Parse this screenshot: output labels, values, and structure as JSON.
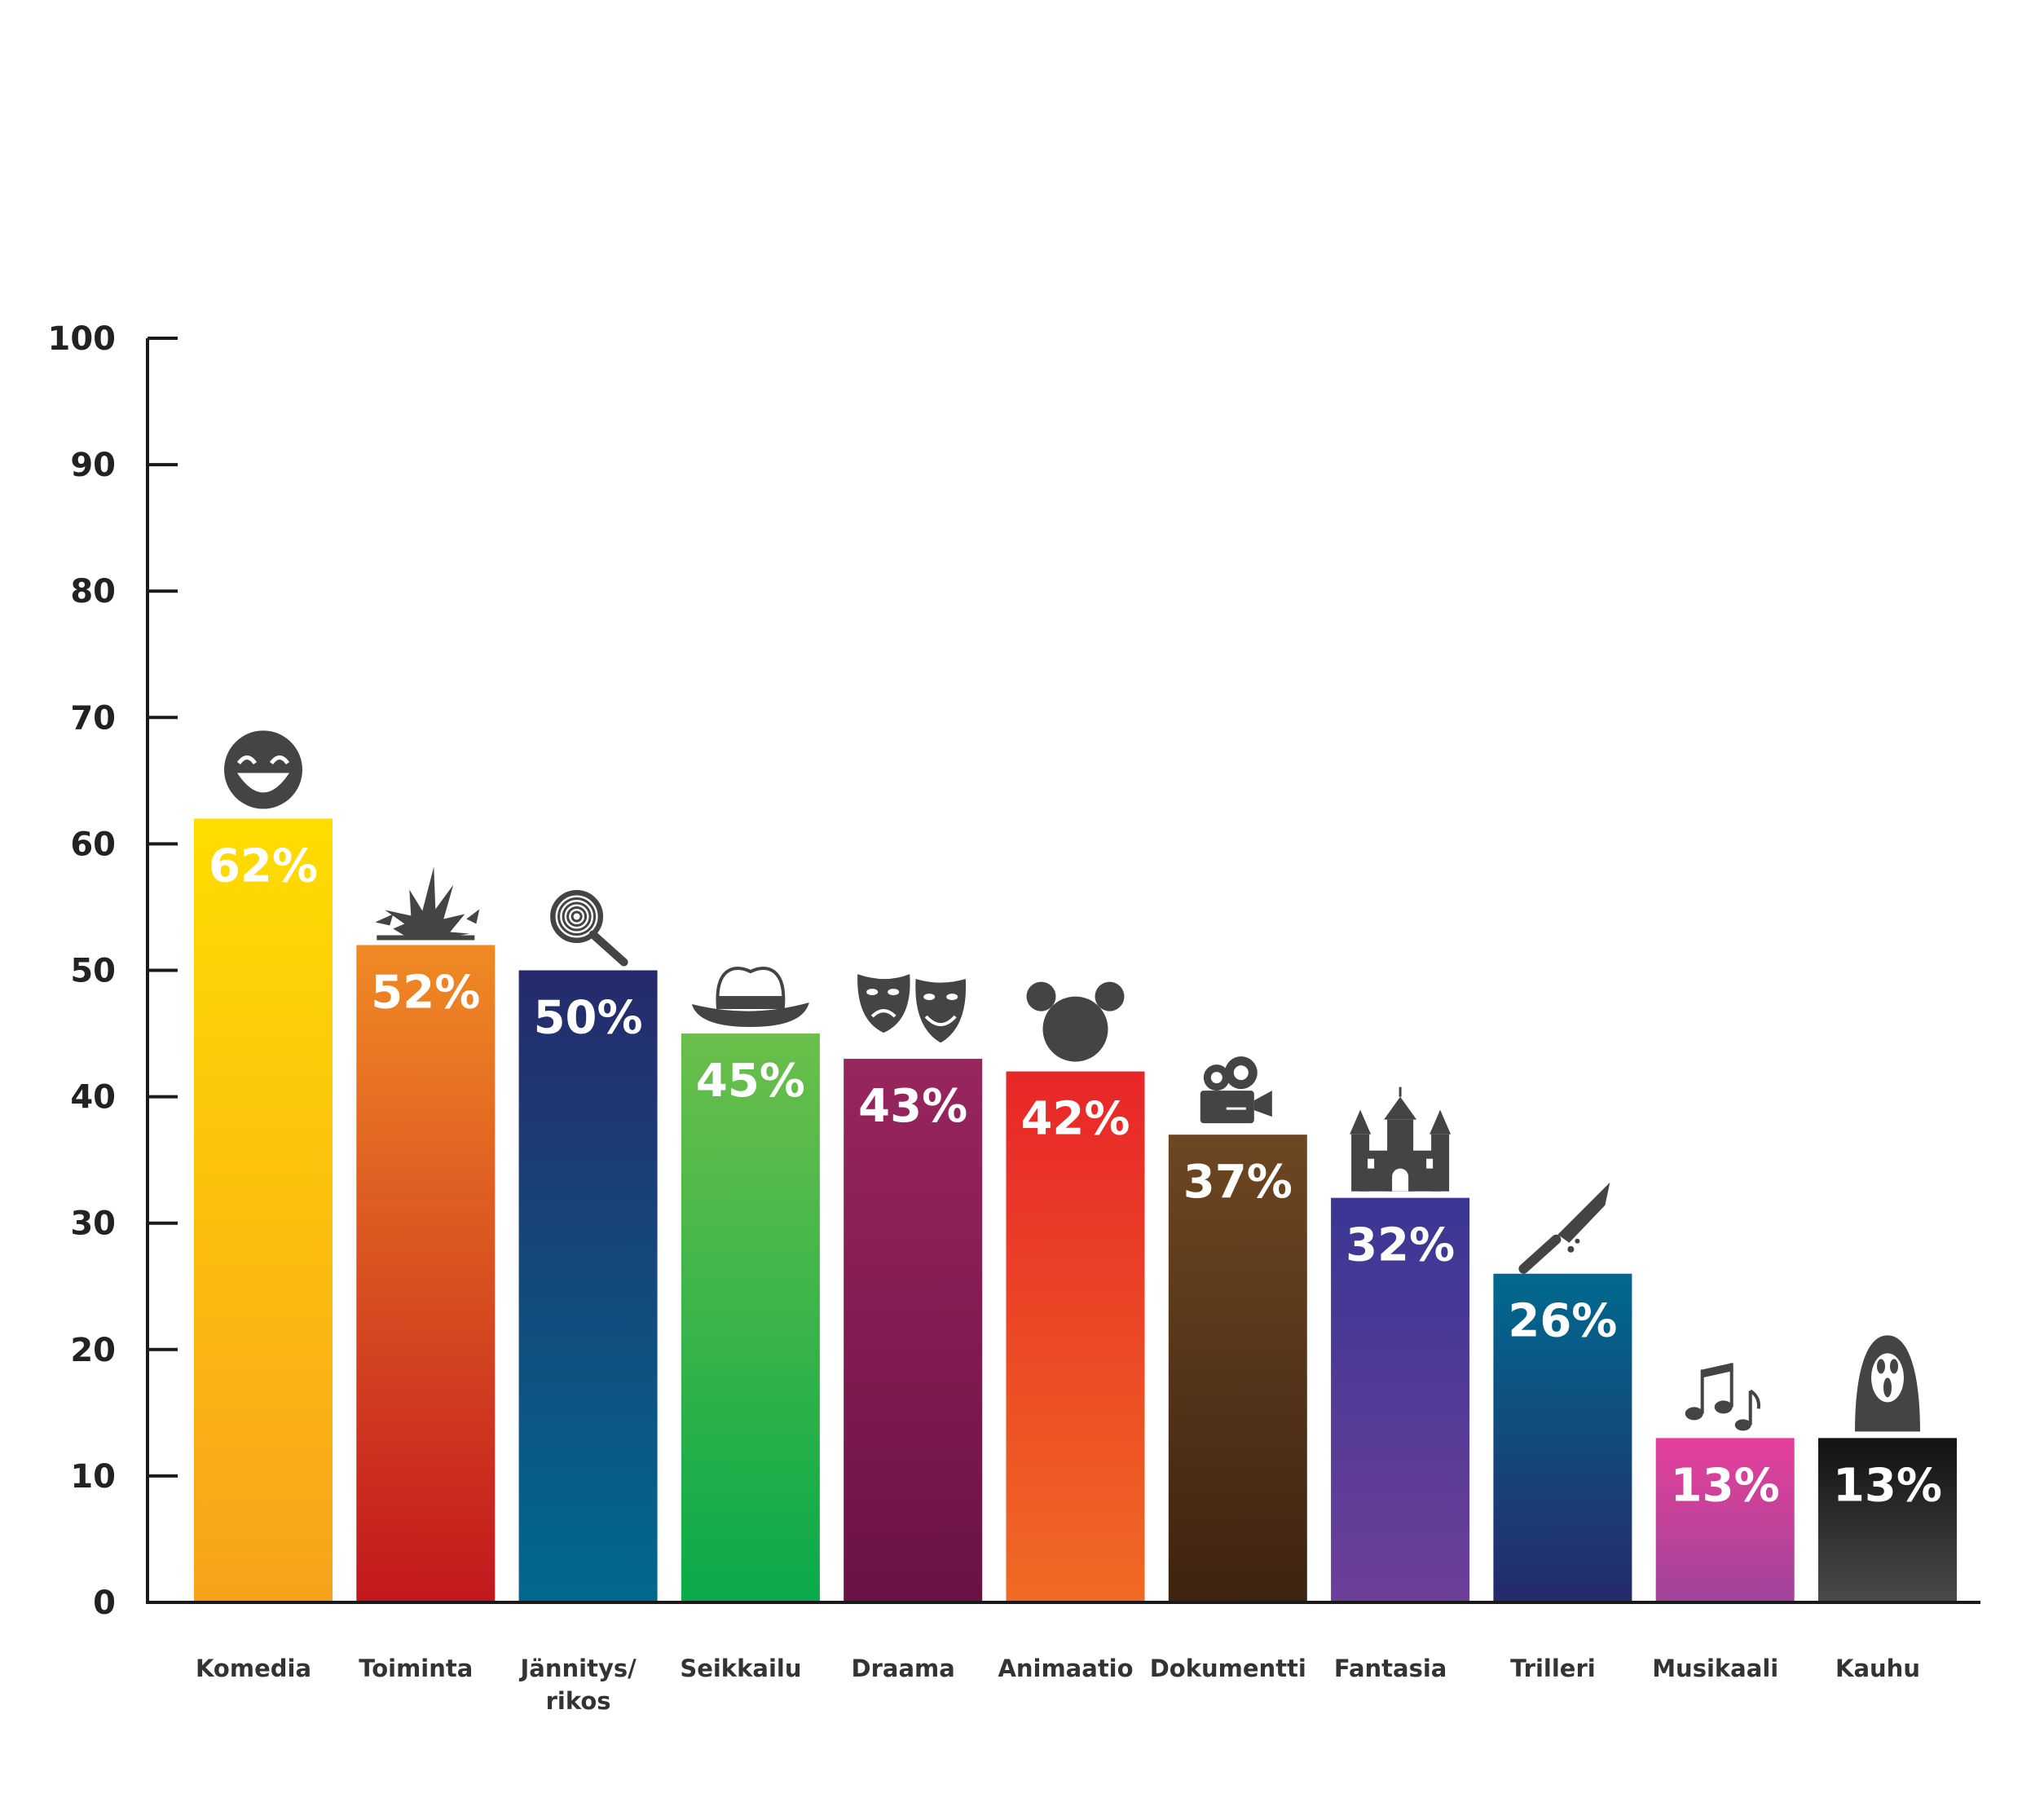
{
  "chart_data": {
    "type": "bar",
    "title": "",
    "xlabel": "",
    "ylabel": "",
    "ylim": [
      0,
      100
    ],
    "yticks": [
      0,
      10,
      20,
      30,
      40,
      50,
      60,
      70,
      80,
      90,
      100
    ],
    "grid": false,
    "categories": [
      "Komedia",
      "Toiminta",
      "Jännitys/\nrikos",
      "Seikkailu",
      "Draama",
      "Animaatio",
      "Dokumentti",
      "Fantasia",
      "Trilleri",
      "Musikaali",
      "Kauhu"
    ],
    "values": [
      62,
      52,
      50,
      45,
      43,
      42,
      37,
      32,
      26,
      13,
      13
    ],
    "value_labels": [
      "62%",
      "52%",
      "50%",
      "45%",
      "43%",
      "42%",
      "37%",
      "32%",
      "26%",
      "13%",
      "13%"
    ],
    "icons": [
      "laughing-face-icon",
      "explosion-icon",
      "fingerprint-magnifier-icon",
      "fedora-hat-icon",
      "theater-masks-icon",
      "mouse-ears-icon",
      "film-camera-icon",
      "castle-icon",
      "bloody-knife-icon",
      "music-notes-icon",
      "scream-mask-icon"
    ],
    "colors": [
      [
        "#ffdd00",
        "#f7a21b"
      ],
      [
        "#f08a24",
        "#c2171e"
      ],
      [
        "#262a6c",
        "#00698f"
      ],
      [
        "#6bbf4a",
        "#0aaa4a"
      ],
      [
        "#98265e",
        "#6a1244"
      ],
      [
        "#e82629",
        "#f06a23"
      ],
      [
        "#6e4722",
        "#3d2311"
      ],
      [
        "#3a3694",
        "#6c3f99"
      ],
      [
        "#00698f",
        "#252a6a"
      ],
      [
        "#e5409b",
        "#a0439a"
      ],
      [
        "#111111",
        "#4a4a4a"
      ]
    ],
    "icon_color": "#444444"
  }
}
